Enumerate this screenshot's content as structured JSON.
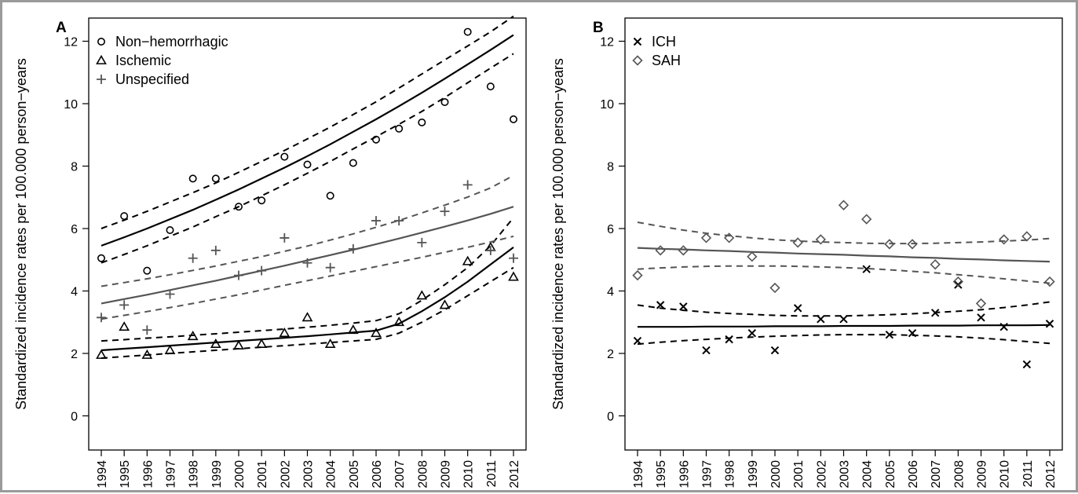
{
  "chart_data": [
    {
      "panel": "A",
      "type": "scatter",
      "ylabel": "Standardized incidence rates per 100.000 person−years",
      "ylim": [
        0,
        12
      ],
      "yticks": [
        0,
        2,
        4,
        6,
        8,
        10,
        12
      ],
      "x": [
        1994,
        1995,
        1996,
        1997,
        1998,
        1999,
        2000,
        2001,
        2002,
        2003,
        2004,
        2005,
        2006,
        2007,
        2008,
        2009,
        2010,
        2011,
        2012
      ],
      "legend_position": "top-left",
      "series": [
        {
          "name": "Non−hemorrhagic",
          "marker": "circle",
          "color": "#000000",
          "values": [
            5.05,
            6.4,
            4.65,
            5.95,
            7.6,
            7.6,
            6.7,
            6.9,
            8.3,
            8.05,
            7.05,
            8.1,
            8.85,
            9.2,
            9.4,
            10.05,
            12.3,
            10.55,
            9.5
          ],
          "fit": [
            5.45,
            5.72,
            6.0,
            6.3,
            6.6,
            6.92,
            7.25,
            7.6,
            7.95,
            8.32,
            8.7,
            9.1,
            9.5,
            9.92,
            10.35,
            10.8,
            11.26,
            11.72,
            12.2
          ],
          "ci_upper": [
            6.0,
            6.27,
            6.55,
            6.85,
            7.15,
            7.46,
            7.8,
            8.15,
            8.5,
            8.87,
            9.25,
            9.65,
            10.06,
            10.5,
            10.95,
            11.4,
            11.85,
            12.3,
            12.8
          ],
          "ci_lower": [
            4.9,
            5.17,
            5.45,
            5.75,
            6.05,
            6.38,
            6.7,
            7.05,
            7.4,
            7.77,
            8.15,
            8.55,
            8.94,
            9.34,
            9.75,
            10.2,
            10.67,
            11.14,
            11.6
          ]
        },
        {
          "name": "Ischemic",
          "marker": "triangle",
          "color": "#000000",
          "values": [
            1.95,
            2.85,
            1.95,
            2.1,
            2.55,
            2.3,
            2.25,
            2.3,
            2.65,
            3.15,
            2.3,
            2.75,
            2.65,
            3.0,
            3.85,
            3.55,
            4.95,
            5.4,
            4.45
          ],
          "fit": [
            2.1,
            2.15,
            2.2,
            2.25,
            2.3,
            2.35,
            2.4,
            2.45,
            2.5,
            2.55,
            2.61,
            2.67,
            2.73,
            2.95,
            3.35,
            3.8,
            4.3,
            4.85,
            5.4
          ],
          "ci_upper": [
            2.4,
            2.44,
            2.49,
            2.53,
            2.58,
            2.63,
            2.68,
            2.73,
            2.78,
            2.84,
            2.9,
            2.97,
            3.05,
            3.27,
            3.7,
            4.2,
            4.75,
            5.45,
            6.35
          ],
          "ci_lower": [
            1.85,
            1.9,
            1.95,
            2.0,
            2.05,
            2.1,
            2.15,
            2.2,
            2.25,
            2.3,
            2.35,
            2.4,
            2.45,
            2.65,
            3.0,
            3.4,
            3.85,
            4.3,
            4.75
          ]
        },
        {
          "name": "Unspecified",
          "marker": "plus",
          "color": "#555555",
          "values": [
            3.15,
            3.55,
            2.75,
            3.9,
            5.05,
            5.3,
            4.5,
            4.65,
            5.7,
            4.9,
            4.75,
            5.35,
            6.25,
            6.25,
            5.55,
            6.55,
            7.4,
            5.3,
            5.05
          ],
          "fit": [
            3.6,
            3.74,
            3.88,
            4.03,
            4.18,
            4.33,
            4.49,
            4.65,
            4.81,
            4.98,
            5.15,
            5.32,
            5.5,
            5.68,
            5.87,
            6.06,
            6.26,
            6.47,
            6.7
          ],
          "ci_upper": [
            4.15,
            4.27,
            4.39,
            4.52,
            4.66,
            4.8,
            4.95,
            5.1,
            5.27,
            5.44,
            5.63,
            5.83,
            6.04,
            6.26,
            6.5,
            6.75,
            7.01,
            7.3,
            7.7
          ],
          "ci_lower": [
            3.1,
            3.22,
            3.34,
            3.47,
            3.6,
            3.74,
            3.88,
            4.03,
            4.18,
            4.33,
            4.48,
            4.63,
            4.78,
            4.93,
            5.08,
            5.24,
            5.4,
            5.57,
            5.75
          ]
        }
      ]
    },
    {
      "panel": "B",
      "type": "scatter",
      "ylabel": "Standardized incidence rates per 100.000 person−years",
      "ylim": [
        0,
        12
      ],
      "yticks": [
        0,
        2,
        4,
        6,
        8,
        10,
        12
      ],
      "x": [
        1994,
        1995,
        1996,
        1997,
        1998,
        1999,
        2000,
        2001,
        2002,
        2003,
        2004,
        2005,
        2006,
        2007,
        2008,
        2009,
        2010,
        2011,
        2012
      ],
      "legend_position": "top-left",
      "series": [
        {
          "name": "ICH",
          "marker": "cross",
          "color": "#000000",
          "values": [
            2.4,
            3.55,
            3.5,
            2.1,
            2.45,
            2.65,
            2.1,
            3.45,
            3.1,
            3.1,
            4.7,
            2.6,
            2.65,
            3.3,
            4.2,
            3.15,
            2.85,
            1.65,
            2.95
          ],
          "fit": [
            2.85,
            2.85,
            2.85,
            2.86,
            2.86,
            2.86,
            2.87,
            2.87,
            2.87,
            2.88,
            2.88,
            2.88,
            2.89,
            2.89,
            2.89,
            2.9,
            2.9,
            2.9,
            2.91
          ],
          "ci_upper": [
            3.55,
            3.45,
            3.38,
            3.32,
            3.28,
            3.25,
            3.22,
            3.2,
            3.2,
            3.2,
            3.22,
            3.24,
            3.27,
            3.31,
            3.35,
            3.4,
            3.47,
            3.55,
            3.65
          ],
          "ci_lower": [
            2.3,
            2.36,
            2.41,
            2.45,
            2.49,
            2.52,
            2.55,
            2.57,
            2.59,
            2.6,
            2.6,
            2.6,
            2.58,
            2.56,
            2.53,
            2.49,
            2.44,
            2.38,
            2.32
          ]
        },
        {
          "name": "SAH",
          "marker": "diamond",
          "color": "#555555",
          "values": [
            4.5,
            5.3,
            5.3,
            5.7,
            5.7,
            5.1,
            4.1,
            5.55,
            5.65,
            6.75,
            6.3,
            5.5,
            5.5,
            4.85,
            4.3,
            3.6,
            5.65,
            5.75,
            4.3
          ],
          "fit": [
            5.38,
            5.35,
            5.33,
            5.3,
            5.28,
            5.25,
            5.23,
            5.2,
            5.18,
            5.16,
            5.13,
            5.11,
            5.08,
            5.06,
            5.03,
            5.01,
            4.98,
            4.96,
            4.94
          ],
          "ci_upper": [
            6.2,
            6.07,
            5.95,
            5.85,
            5.77,
            5.7,
            5.64,
            5.6,
            5.57,
            5.55,
            5.53,
            5.52,
            5.52,
            5.53,
            5.55,
            5.57,
            5.6,
            5.63,
            5.68
          ],
          "ci_lower": [
            4.7,
            4.74,
            4.77,
            4.79,
            4.8,
            4.8,
            4.8,
            4.79,
            4.77,
            4.75,
            4.72,
            4.68,
            4.63,
            4.58,
            4.52,
            4.46,
            4.39,
            4.32,
            4.25
          ]
        }
      ]
    }
  ]
}
